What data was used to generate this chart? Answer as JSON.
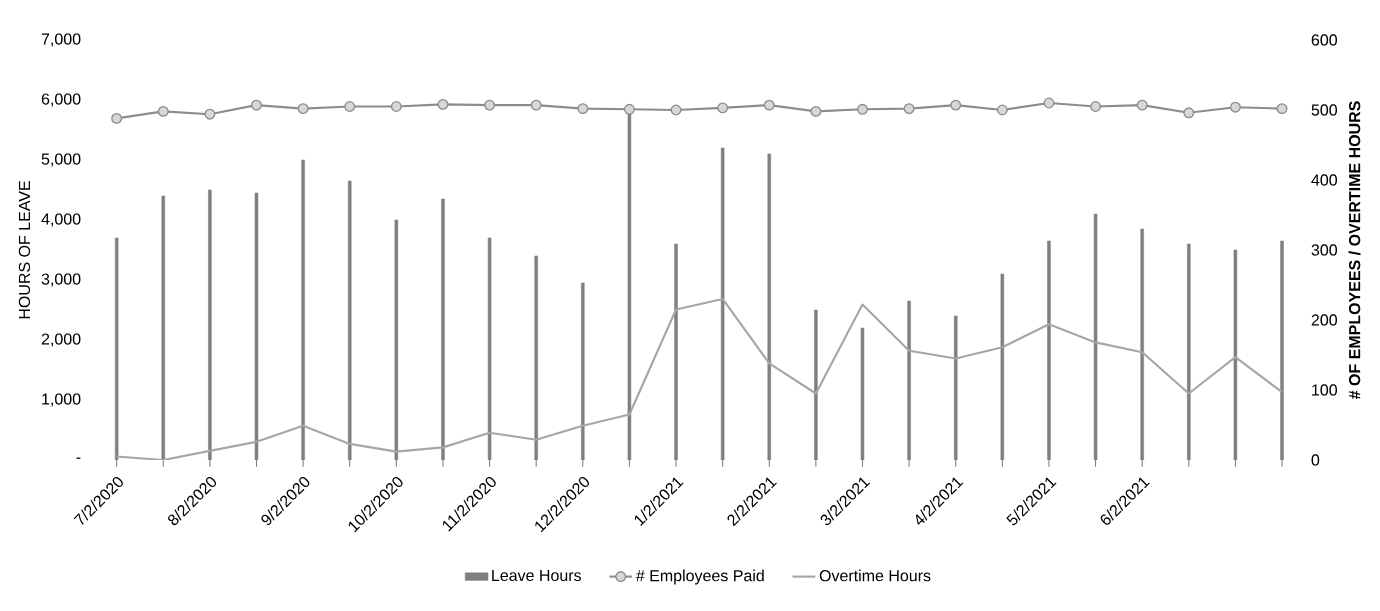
{
  "chart_data": {
    "type": "bar",
    "xlabel": null,
    "ylabel": "HOURS OF LEAVE",
    "y2label": "# OF EMPLOYEES / OVERTIME HOURS",
    "categories": [
      "7/2/2020",
      null,
      "8/2/2020",
      null,
      "9/2/2020",
      null,
      "10/2/2020",
      null,
      "11/2/2020",
      null,
      "12/2/2020",
      null,
      "1/2/2021",
      null,
      "2/2/2021",
      null,
      "3/2/2021",
      null,
      "4/2/2021",
      null,
      "5/2/2021",
      null,
      "6/2/2021",
      null,
      null,
      null
    ],
    "series": [
      {
        "name": "Leave Hours",
        "color": "#7f7f7f",
        "values": [
          3700,
          4400,
          4500,
          4450,
          5000,
          4650,
          4000,
          4350,
          3700,
          3400,
          2950,
          5800,
          3600,
          5200,
          5100,
          2500,
          2200,
          2650,
          2400,
          3100,
          3650,
          4100,
          3850,
          3600,
          3500,
          3650
        ]
      },
      {
        "name": "# Employees Paid",
        "type": "line",
        "axis": "y2",
        "color": "#8c8c8c",
        "marker": "circle",
        "values": [
          488,
          498,
          494,
          507,
          502,
          505,
          505,
          508,
          507,
          507,
          502,
          501,
          500,
          503,
          507,
          498,
          501,
          502,
          507,
          500,
          510,
          505,
          507,
          496,
          504,
          502
        ]
      },
      {
        "name": "Overtime Hours",
        "type": "line",
        "axis": "y2",
        "color": "#a6a6a6",
        "marker": "none",
        "values": [
          5,
          0,
          13,
          26,
          49,
          23,
          12,
          18,
          39,
          29,
          49,
          65,
          215,
          230,
          138,
          95,
          222,
          156,
          145,
          161,
          194,
          168,
          154,
          95,
          147,
          97
        ]
      }
    ],
    "ylim": [
      0,
      7000
    ],
    "yticks": [
      {
        "value": 0,
        "label": "-"
      },
      {
        "value": 1000,
        "label": "1,000"
      },
      {
        "value": 2000,
        "label": "2,000"
      },
      {
        "value": 3000,
        "label": "3,000"
      },
      {
        "value": 4000,
        "label": "4,000"
      },
      {
        "value": 5000,
        "label": "5,000"
      },
      {
        "value": 6000,
        "label": "6,000"
      },
      {
        "value": 7000,
        "label": "7,000"
      }
    ],
    "y2lim": [
      0,
      600
    ],
    "y2ticks": [
      0,
      100,
      200,
      300,
      400,
      500,
      600
    ],
    "legend": "bottom"
  }
}
